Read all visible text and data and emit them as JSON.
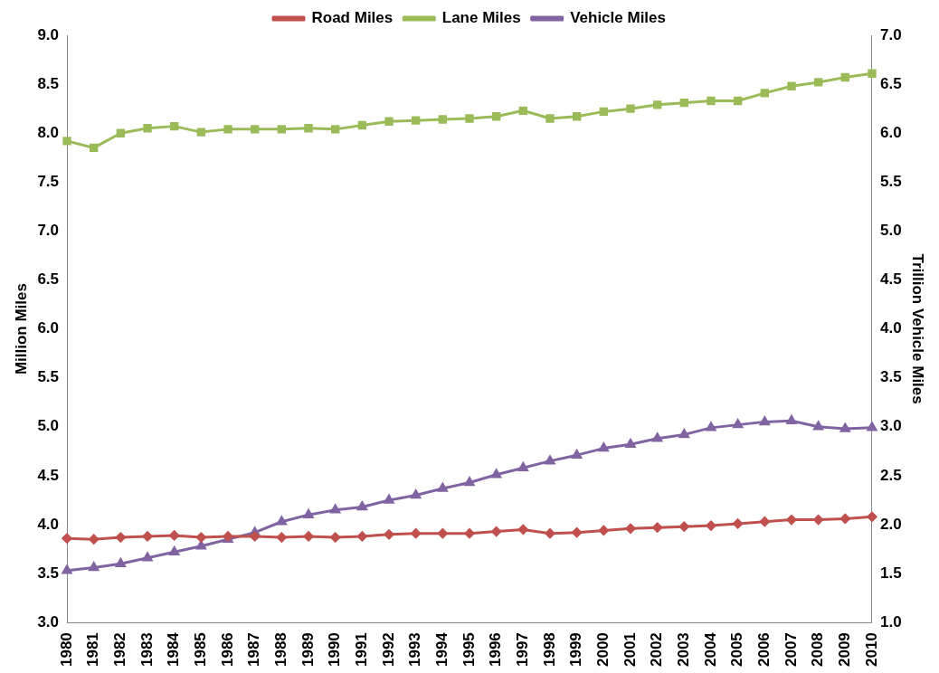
{
  "chart_data": {
    "type": "line",
    "categories": [
      "1980",
      "1981",
      "1982",
      "1983",
      "1984",
      "1985",
      "1986",
      "1987",
      "1988",
      "1989",
      "1990",
      "1991",
      "1992",
      "1993",
      "1994",
      "1995",
      "1996",
      "1997",
      "1998",
      "1999",
      "2000",
      "2001",
      "2002",
      "2003",
      "2004",
      "2005",
      "2006",
      "2007",
      "2008",
      "2009",
      "2010"
    ],
    "ylabel": "Million Miles",
    "y2label": "Trillion Vehicle Miles",
    "ylim": [
      3,
      9
    ],
    "yticks": [
      {
        "value": 3,
        "label": "3.0"
      },
      {
        "value": 3.5,
        "label": "3.5"
      },
      {
        "value": 4,
        "label": "4.0"
      },
      {
        "value": 4.5,
        "label": "4.5"
      },
      {
        "value": 5,
        "label": "5.0"
      },
      {
        "value": 5.5,
        "label": "5.5"
      },
      {
        "value": 6,
        "label": "6.0"
      },
      {
        "value": 6.5,
        "label": "6.5"
      },
      {
        "value": 7,
        "label": "7.0"
      },
      {
        "value": 7.5,
        "label": "7.5"
      },
      {
        "value": 8,
        "label": "8.0"
      },
      {
        "value": 8.5,
        "label": "8.5"
      },
      {
        "value": 9,
        "label": "9.0"
      }
    ],
    "y2lim": [
      1,
      7
    ],
    "y2ticks": [
      {
        "value": 1,
        "label": "1.0"
      },
      {
        "value": 1.5,
        "label": "1.5"
      },
      {
        "value": 2,
        "label": "2.0"
      },
      {
        "value": 2.5,
        "label": "2.5"
      },
      {
        "value": 3,
        "label": "3.0"
      },
      {
        "value": 3.5,
        "label": "3.5"
      },
      {
        "value": 4,
        "label": "4.0"
      },
      {
        "value": 4.5,
        "label": "4.5"
      },
      {
        "value": 5,
        "label": "5.0"
      },
      {
        "value": 5.5,
        "label": "5.5"
      },
      {
        "value": 6,
        "label": "6.0"
      },
      {
        "value": 6.5,
        "label": "6.5"
      },
      {
        "value": 7,
        "label": "7.0"
      }
    ],
    "grid": false,
    "legend": "top",
    "line_style": "solid",
    "series": [
      {
        "name": "Road Miles",
        "color": "#c0504d",
        "marker": "diamond",
        "values": [
          3.86,
          3.85,
          3.87,
          3.88,
          3.89,
          3.87,
          3.88,
          3.88,
          3.87,
          3.88,
          3.87,
          3.88,
          3.9,
          3.91,
          3.91,
          3.91,
          3.93,
          3.95,
          3.91,
          3.92,
          3.94,
          3.96,
          3.97,
          3.98,
          3.99,
          4.01,
          4.03,
          4.05,
          4.05,
          4.06,
          4.08
        ]
      },
      {
        "name": "Lane Miles",
        "color": "#9bbb59",
        "marker": "square",
        "values": [
          7.92,
          7.85,
          8.0,
          8.05,
          8.07,
          8.01,
          8.04,
          8.04,
          8.04,
          8.05,
          8.04,
          8.08,
          8.12,
          8.13,
          8.14,
          8.15,
          8.17,
          8.23,
          8.15,
          8.17,
          8.22,
          8.25,
          8.29,
          8.31,
          8.33,
          8.33,
          8.41,
          8.48,
          8.52,
          8.57,
          8.61
        ]
      },
      {
        "name": "Vehicle Miles",
        "color": "#8064a2",
        "marker": "triangle",
        "axis": "y2",
        "values": [
          1.53,
          1.56,
          1.6,
          1.66,
          1.72,
          1.78,
          1.85,
          1.92,
          2.03,
          2.1,
          2.15,
          2.18,
          2.25,
          2.3,
          2.37,
          2.43,
          2.51,
          2.58,
          2.65,
          2.71,
          2.78,
          2.82,
          2.88,
          2.92,
          2.99,
          3.02,
          3.05,
          3.06,
          3.0,
          2.98,
          2.99
        ]
      }
    ]
  }
}
